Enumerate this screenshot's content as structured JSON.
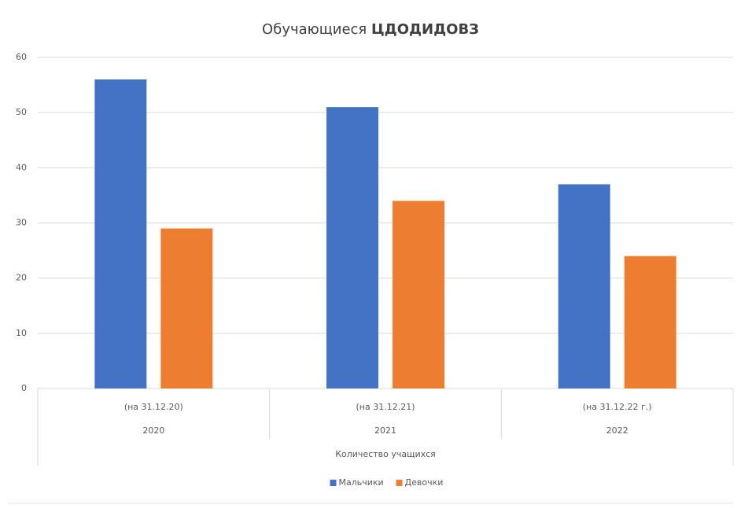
{
  "chart_data": {
    "type": "bar",
    "title": "Обучающиеся",
    "title_emphasis": "ЦДОДИДОВЗ",
    "categories": [
      "(на 31.12.20)",
      "(на 31.12.21)",
      "(на 31.12.22 г.)"
    ],
    "category_groups": [
      "2020",
      "2021",
      "2022"
    ],
    "category_super": "Количество учащихся",
    "series": [
      {
        "name": "Мальчики",
        "color": "#4472c4",
        "values": [
          56,
          51,
          37
        ]
      },
      {
        "name": "Девочки",
        "color": "#ed7d31",
        "values": [
          29,
          34,
          24
        ]
      }
    ],
    "ylim": [
      0,
      60
    ],
    "yticks": [
      0,
      10,
      20,
      30,
      40,
      50,
      60
    ],
    "grid": true,
    "legend": "bottom"
  }
}
